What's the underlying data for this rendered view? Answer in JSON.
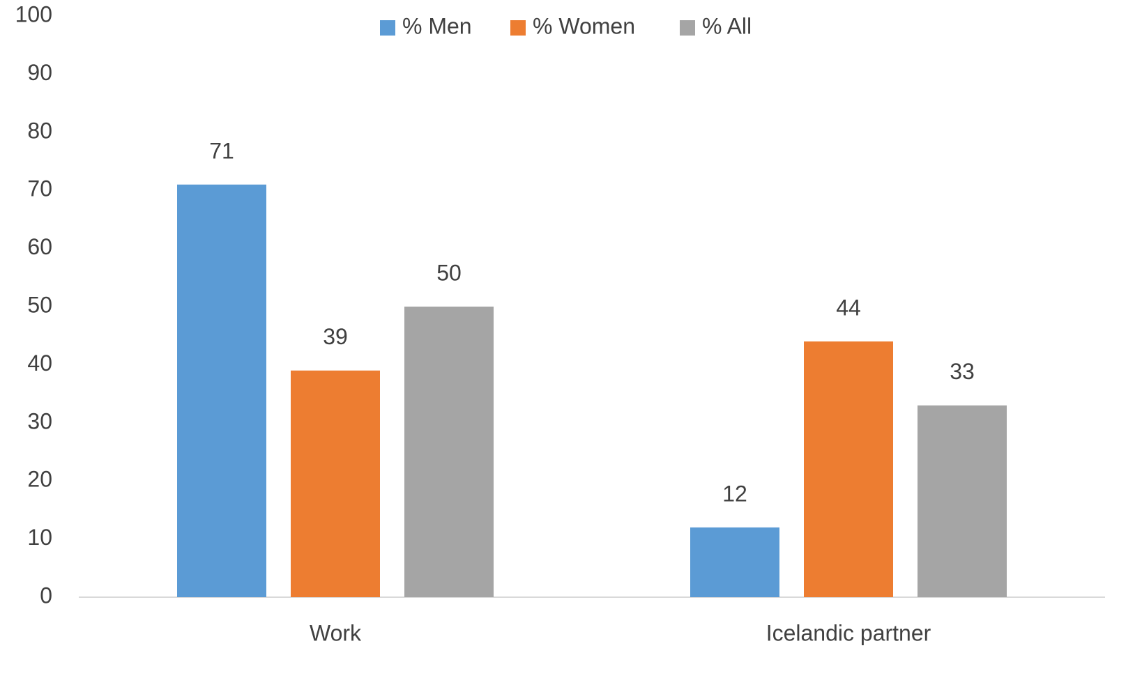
{
  "chart_data": {
    "type": "bar",
    "legend": "top",
    "categories": [
      "Work",
      "Icelandic partner"
    ],
    "series": [
      {
        "name": "% Men",
        "color": "#5b9bd5",
        "values": [
          71,
          12
        ]
      },
      {
        "name": "% Women",
        "color": "#ed7d31",
        "values": [
          39,
          44
        ]
      },
      {
        "name": "% All",
        "color": "#a5a5a5",
        "values": [
          50,
          33
        ]
      }
    ],
    "ylim": [
      0,
      100
    ],
    "yticks": [
      0,
      10,
      20,
      30,
      40,
      50,
      60,
      70,
      80,
      90,
      100
    ],
    "grid": false
  }
}
